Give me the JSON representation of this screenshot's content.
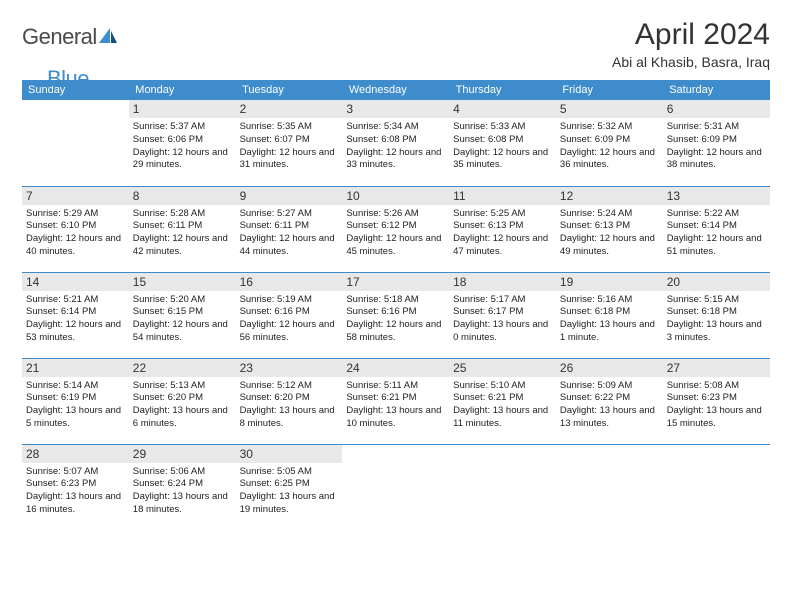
{
  "logo": {
    "general": "General",
    "blue": "Blue"
  },
  "title": "April 2024",
  "location": "Abi al Khasib, Basra, Iraq",
  "colors": {
    "accent": "#3e8ccc",
    "header_bg": "#3e8ccc",
    "header_text": "#ffffff",
    "daynum_bg": "#e8e8e8",
    "text": "#222222",
    "border": "#3e8ccc"
  },
  "weekdays": [
    "Sunday",
    "Monday",
    "Tuesday",
    "Wednesday",
    "Thursday",
    "Friday",
    "Saturday"
  ],
  "weeks": [
    [
      {
        "n": "",
        "sr": "",
        "ss": "",
        "dl": ""
      },
      {
        "n": "1",
        "sr": "Sunrise: 5:37 AM",
        "ss": "Sunset: 6:06 PM",
        "dl": "Daylight: 12 hours and 29 minutes."
      },
      {
        "n": "2",
        "sr": "Sunrise: 5:35 AM",
        "ss": "Sunset: 6:07 PM",
        "dl": "Daylight: 12 hours and 31 minutes."
      },
      {
        "n": "3",
        "sr": "Sunrise: 5:34 AM",
        "ss": "Sunset: 6:08 PM",
        "dl": "Daylight: 12 hours and 33 minutes."
      },
      {
        "n": "4",
        "sr": "Sunrise: 5:33 AM",
        "ss": "Sunset: 6:08 PM",
        "dl": "Daylight: 12 hours and 35 minutes."
      },
      {
        "n": "5",
        "sr": "Sunrise: 5:32 AM",
        "ss": "Sunset: 6:09 PM",
        "dl": "Daylight: 12 hours and 36 minutes."
      },
      {
        "n": "6",
        "sr": "Sunrise: 5:31 AM",
        "ss": "Sunset: 6:09 PM",
        "dl": "Daylight: 12 hours and 38 minutes."
      }
    ],
    [
      {
        "n": "7",
        "sr": "Sunrise: 5:29 AM",
        "ss": "Sunset: 6:10 PM",
        "dl": "Daylight: 12 hours and 40 minutes."
      },
      {
        "n": "8",
        "sr": "Sunrise: 5:28 AM",
        "ss": "Sunset: 6:11 PM",
        "dl": "Daylight: 12 hours and 42 minutes."
      },
      {
        "n": "9",
        "sr": "Sunrise: 5:27 AM",
        "ss": "Sunset: 6:11 PM",
        "dl": "Daylight: 12 hours and 44 minutes."
      },
      {
        "n": "10",
        "sr": "Sunrise: 5:26 AM",
        "ss": "Sunset: 6:12 PM",
        "dl": "Daylight: 12 hours and 45 minutes."
      },
      {
        "n": "11",
        "sr": "Sunrise: 5:25 AM",
        "ss": "Sunset: 6:13 PM",
        "dl": "Daylight: 12 hours and 47 minutes."
      },
      {
        "n": "12",
        "sr": "Sunrise: 5:24 AM",
        "ss": "Sunset: 6:13 PM",
        "dl": "Daylight: 12 hours and 49 minutes."
      },
      {
        "n": "13",
        "sr": "Sunrise: 5:22 AM",
        "ss": "Sunset: 6:14 PM",
        "dl": "Daylight: 12 hours and 51 minutes."
      }
    ],
    [
      {
        "n": "14",
        "sr": "Sunrise: 5:21 AM",
        "ss": "Sunset: 6:14 PM",
        "dl": "Daylight: 12 hours and 53 minutes."
      },
      {
        "n": "15",
        "sr": "Sunrise: 5:20 AM",
        "ss": "Sunset: 6:15 PM",
        "dl": "Daylight: 12 hours and 54 minutes."
      },
      {
        "n": "16",
        "sr": "Sunrise: 5:19 AM",
        "ss": "Sunset: 6:16 PM",
        "dl": "Daylight: 12 hours and 56 minutes."
      },
      {
        "n": "17",
        "sr": "Sunrise: 5:18 AM",
        "ss": "Sunset: 6:16 PM",
        "dl": "Daylight: 12 hours and 58 minutes."
      },
      {
        "n": "18",
        "sr": "Sunrise: 5:17 AM",
        "ss": "Sunset: 6:17 PM",
        "dl": "Daylight: 13 hours and 0 minutes."
      },
      {
        "n": "19",
        "sr": "Sunrise: 5:16 AM",
        "ss": "Sunset: 6:18 PM",
        "dl": "Daylight: 13 hours and 1 minute."
      },
      {
        "n": "20",
        "sr": "Sunrise: 5:15 AM",
        "ss": "Sunset: 6:18 PM",
        "dl": "Daylight: 13 hours and 3 minutes."
      }
    ],
    [
      {
        "n": "21",
        "sr": "Sunrise: 5:14 AM",
        "ss": "Sunset: 6:19 PM",
        "dl": "Daylight: 13 hours and 5 minutes."
      },
      {
        "n": "22",
        "sr": "Sunrise: 5:13 AM",
        "ss": "Sunset: 6:20 PM",
        "dl": "Daylight: 13 hours and 6 minutes."
      },
      {
        "n": "23",
        "sr": "Sunrise: 5:12 AM",
        "ss": "Sunset: 6:20 PM",
        "dl": "Daylight: 13 hours and 8 minutes."
      },
      {
        "n": "24",
        "sr": "Sunrise: 5:11 AM",
        "ss": "Sunset: 6:21 PM",
        "dl": "Daylight: 13 hours and 10 minutes."
      },
      {
        "n": "25",
        "sr": "Sunrise: 5:10 AM",
        "ss": "Sunset: 6:21 PM",
        "dl": "Daylight: 13 hours and 11 minutes."
      },
      {
        "n": "26",
        "sr": "Sunrise: 5:09 AM",
        "ss": "Sunset: 6:22 PM",
        "dl": "Daylight: 13 hours and 13 minutes."
      },
      {
        "n": "27",
        "sr": "Sunrise: 5:08 AM",
        "ss": "Sunset: 6:23 PM",
        "dl": "Daylight: 13 hours and 15 minutes."
      }
    ],
    [
      {
        "n": "28",
        "sr": "Sunrise: 5:07 AM",
        "ss": "Sunset: 6:23 PM",
        "dl": "Daylight: 13 hours and 16 minutes."
      },
      {
        "n": "29",
        "sr": "Sunrise: 5:06 AM",
        "ss": "Sunset: 6:24 PM",
        "dl": "Daylight: 13 hours and 18 minutes."
      },
      {
        "n": "30",
        "sr": "Sunrise: 5:05 AM",
        "ss": "Sunset: 6:25 PM",
        "dl": "Daylight: 13 hours and 19 minutes."
      },
      {
        "n": "",
        "sr": "",
        "ss": "",
        "dl": ""
      },
      {
        "n": "",
        "sr": "",
        "ss": "",
        "dl": ""
      },
      {
        "n": "",
        "sr": "",
        "ss": "",
        "dl": ""
      },
      {
        "n": "",
        "sr": "",
        "ss": "",
        "dl": ""
      }
    ]
  ]
}
